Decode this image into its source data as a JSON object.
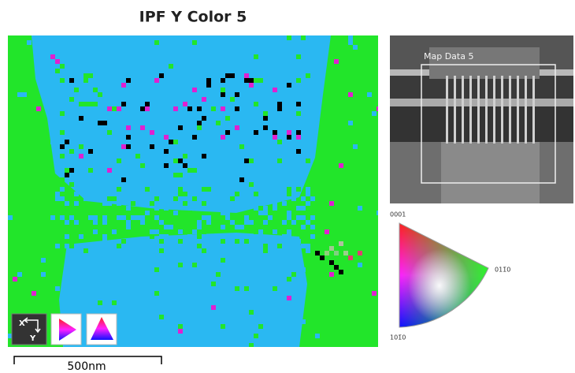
{
  "header": {
    "title": "IPF Y Color 5"
  },
  "map": {
    "axis_x": "X",
    "axis_y": "Y",
    "scale_bar": "500nm"
  },
  "overview": {
    "label": "Map Data 5"
  },
  "color_key": {
    "top": "0001",
    "right": "011̄0",
    "bottom": "101̄0"
  }
}
